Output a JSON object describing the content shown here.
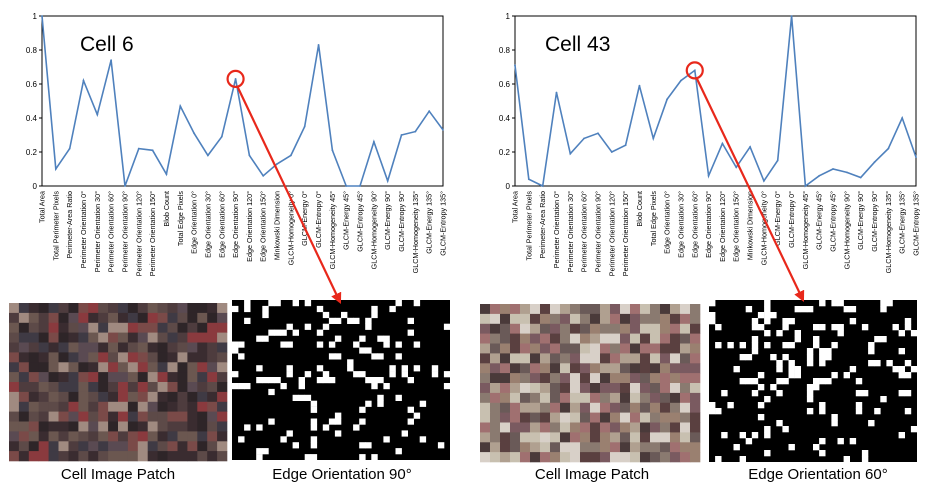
{
  "panels": [
    {
      "chart_data": {
        "type": "line",
        "title": "Cell 6",
        "ylim": [
          0,
          1
        ],
        "yticks": [
          "0",
          "0.2",
          "0.4",
          "0.6",
          "0.8",
          "1"
        ],
        "categories": [
          "Total Area",
          "Total Perimeter Pixels",
          "Perimeter-Area Ratio",
          "Perimeter Orientation 0°",
          "Perimeter Orientation 30°",
          "Perimeter Orientation 60°",
          "Perimeter Orientation 90°",
          "Perimeter Orientation 120°",
          "Perimeter Orientation 150°",
          "Blob Count",
          "Total Edge Pixels",
          "Edge Orientation 0°",
          "Edge Orientation 30°",
          "Edge Orientation 60°",
          "Edge Orientation 90°",
          "Edge Orientation 120°",
          "Edge Orientation 150°",
          "Minkowski Dimension",
          "GLCM-Homogeneity 0°",
          "GLCM-Energy 0°",
          "GLCM-Entropy 0°",
          "GLCM-Homogeneity 45°",
          "GLCM-Energy 45°",
          "GLCM-Entropy 45°",
          "GLCM-Homogeneity 90°",
          "GLCM-Energy 90°",
          "GLCM-Entropy 90°",
          "GLCM-Homogeneity 135°",
          "GLCM-Energy 135°",
          "GLCM-Entropy 135°"
        ],
        "values": [
          1.0,
          0.1,
          0.22,
          0.62,
          0.42,
          0.74,
          0.0,
          0.22,
          0.21,
          0.07,
          0.47,
          0.31,
          0.18,
          0.29,
          0.63,
          0.18,
          0.06,
          0.13,
          0.18,
          0.35,
          0.83,
          0.21,
          0.0,
          0.0,
          0.26,
          0.03,
          0.3,
          0.32,
          0.44,
          0.33
        ],
        "highlight_index": 14,
        "line_color": "#4f81bd",
        "highlight_color": "#e8281b"
      },
      "patch_caption": "Cell Image Patch",
      "edge_caption": "Edge Orientation 90°"
    },
    {
      "chart_data": {
        "type": "line",
        "title": "Cell 43",
        "ylim": [
          0,
          1
        ],
        "yticks": [
          "0",
          "0.2",
          "0.4",
          "0.6",
          "0.8",
          "1"
        ],
        "categories": [
          "Total Area",
          "Total Perimeter Pixels",
          "Perimeter-Area Ratio",
          "Perimeter Orientation 0°",
          "Perimeter Orientation 30°",
          "Perimeter Orientation 60°",
          "Perimeter Orientation 90°",
          "Perimeter Orientation 120°",
          "Perimeter Orientation 150°",
          "Blob Count",
          "Total Edge Pixels",
          "Edge Orientation 0°",
          "Edge Orientation 30°",
          "Edge Orientation 60°",
          "Edge Orientation 90°",
          "Edge Orientation 120°",
          "Edge Orientation 150°",
          "Minkowski Dimension",
          "GLCM-Homogeneity 0°",
          "GLCM-Energy 0°",
          "GLCM-Entropy 0°",
          "GLCM-Homogeneity 45°",
          "GLCM-Energy 45°",
          "GLCM-Entropy 45°",
          "GLCM-Homogeneity 90°",
          "GLCM-Energy 90°",
          "GLCM-Entropy 90°",
          "GLCM-Homogeneity 135°",
          "GLCM-Energy 135°",
          "GLCM-Entropy 135°"
        ],
        "values": [
          0.71,
          0.04,
          0.0,
          0.55,
          0.19,
          0.28,
          0.31,
          0.2,
          0.24,
          0.59,
          0.28,
          0.51,
          0.62,
          0.68,
          0.06,
          0.25,
          0.11,
          0.23,
          0.03,
          0.15,
          1.0,
          0.0,
          0.06,
          0.1,
          0.08,
          0.05,
          0.14,
          0.22,
          0.4,
          0.17
        ],
        "highlight_index": 13,
        "line_color": "#4f81bd",
        "highlight_color": "#e8281b"
      },
      "patch_caption": "Cell Image Patch",
      "edge_caption": "Edge Orientation 60°"
    }
  ]
}
